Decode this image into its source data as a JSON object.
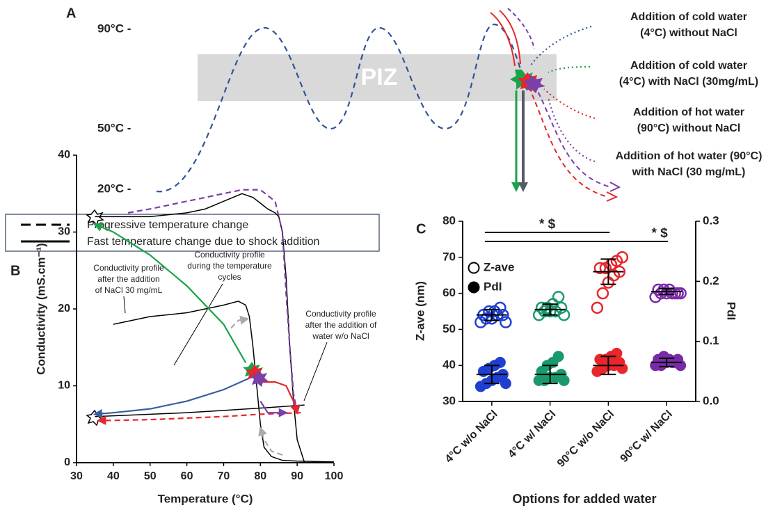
{
  "panel_a": {
    "label": "A",
    "temperatures": [
      "90°C -",
      "50°C -",
      "20°C -"
    ],
    "zone": "PIZ",
    "additions": [
      [
        "Addition of cold water",
        "(4°C) without NaCl"
      ],
      [
        "Addition of cold water",
        "(4°C) with NaCl (30mg/mL)"
      ],
      [
        "Addition of hot water",
        "(90°C) without NaCl"
      ],
      [
        "Addition of hot water (90°C)",
        "with NaCl (30 mg/mL)"
      ]
    ]
  },
  "line_key": [
    "Progressive temperature change",
    "Fast temperature change due to shock addition"
  ],
  "chart_data": [
    {
      "type": "line",
      "label": "B",
      "xlabel": "Temperature (°C)",
      "ylabel": "Conductivity (mS.cm⁻¹)",
      "xlim": [
        30,
        100
      ],
      "xticks": [
        30,
        40,
        50,
        60,
        70,
        80,
        90,
        100
      ],
      "ylim": [
        0,
        40
      ],
      "yticks": [
        0,
        10,
        20,
        30,
        40
      ],
      "annotations": [
        [
          "Conductivity profile",
          "after the addition",
          "of NaCl 30 mg/mL"
        ],
        [
          "Conductivity profile",
          "during the temperature",
          "cycles"
        ],
        [
          "Conductivity profile",
          "after the addition of",
          "water w/o NaCl"
        ]
      ],
      "series": [
        {
          "color": "#000000",
          "dashed": false,
          "arrow": false,
          "x": [
            40,
            50,
            60,
            70,
            74,
            76,
            77,
            78,
            79,
            80,
            81,
            83,
            86,
            90,
            100
          ],
          "values": [
            18,
            19,
            19.5,
            20.5,
            21,
            20.5,
            19,
            15,
            10,
            5,
            2,
            0.8,
            0.3,
            0.2,
            0.1
          ]
        },
        {
          "color": "#000000",
          "dashed": false,
          "arrow": false,
          "x": [
            35,
            40,
            50,
            60,
            65,
            70,
            75,
            78,
            82,
            84,
            85,
            86,
            87,
            88,
            89,
            90,
            92
          ],
          "values": [
            32,
            32,
            32,
            32.5,
            33,
            34,
            35,
            34.5,
            33,
            32.5,
            32,
            30,
            24,
            15,
            8,
            3,
            0
          ]
        },
        {
          "color": "#000000",
          "dashed": false,
          "arrow": false,
          "x": [
            35,
            40,
            50,
            60,
            70,
            80,
            92
          ],
          "values": [
            6,
            6.1,
            6.3,
            6.5,
            6.8,
            7.1,
            7.5
          ]
        },
        {
          "color": "#1aa34a",
          "dashed": false,
          "arrow": true,
          "x": [
            76,
            70,
            60,
            50,
            40,
            35
          ],
          "values": [
            13,
            18,
            23,
            27,
            30,
            31
          ]
        },
        {
          "color": "#3a5da0",
          "dashed": false,
          "arrow": true,
          "x": [
            77,
            70,
            60,
            50,
            40,
            35
          ],
          "values": [
            11,
            9.5,
            8,
            7,
            6.5,
            6.3
          ]
        },
        {
          "color": "#e8262b",
          "dashed": true,
          "arrow": true,
          "x": [
            91,
            80,
            70,
            60,
            50,
            40,
            36
          ],
          "values": [
            6.5,
            6.3,
            6,
            5.8,
            5.6,
            5.5,
            5.5
          ]
        },
        {
          "color": "#7b3fa8",
          "dashed": true,
          "arrow": true,
          "x": [
            44,
            50,
            60,
            70,
            75,
            80,
            84,
            86,
            87,
            88,
            89,
            90
          ],
          "values": [
            32.5,
            33,
            34,
            35,
            35.5,
            35.5,
            34,
            30,
            22,
            15,
            9,
            6.5
          ]
        },
        {
          "color": "#e8262b",
          "dashed": false,
          "arrow": true,
          "x": [
            80,
            84,
            87,
            89,
            90
          ],
          "values": [
            10.5,
            10.5,
            10,
            8,
            6.5
          ]
        },
        {
          "color": "#7b3fa8",
          "dashed": false,
          "arrow": true,
          "x": [
            80,
            82,
            84,
            87
          ],
          "values": [
            8,
            6.5,
            6.5,
            6.5
          ]
        },
        {
          "color": "#aaaaaa",
          "dashed": true,
          "arrow": true,
          "x": [
            72,
            74,
            76.5
          ],
          "values": [
            17.5,
            18.5,
            18.7
          ]
        },
        {
          "color": "#aaaaaa",
          "dashed": true,
          "arrow": true,
          "x": [
            86,
            83,
            81,
            80
          ],
          "values": [
            1,
            1.5,
            3,
            4.5
          ]
        }
      ]
    },
    {
      "type": "dot",
      "label": "C",
      "xlabel": "Options for added water",
      "ylabel": "Z-ave (nm)",
      "y2label": "PdI",
      "categories": [
        "4°C w/o NaCl",
        "4°C w/ NaCl",
        "90°C w/o NaCl",
        "90°C w/ NaCl"
      ],
      "colors": [
        "#1f3fd0",
        "#1a9a6c",
        "#e8262b",
        "#7a2aa6"
      ],
      "ylim": [
        30,
        80
      ],
      "yticks": [
        30,
        40,
        50,
        60,
        70,
        80
      ],
      "y2lim": [
        0,
        0.3
      ],
      "y2ticks": [
        {
          "value": 0,
          "label": "0.0"
        },
        0.1,
        0.2,
        0.3
      ],
      "significance": [
        {
          "from": 0,
          "to": 2,
          "label": "* $"
        },
        {
          "from": 0,
          "to": 3,
          "label": "* $"
        }
      ],
      "series": [
        {
          "name": "Z-ave",
          "marker": "open",
          "values": [
            [
              52,
              53,
              53,
              54,
              54,
              54,
              55,
              55,
              56,
              52
            ],
            [
              54,
              55,
              55,
              55,
              56,
              56,
              56,
              57,
              59,
              54
            ],
            [
              56,
              60,
              63,
              65,
              66,
              67,
              67,
              68,
              69,
              70
            ],
            [
              59,
              60,
              60,
              60,
              60,
              61,
              61,
              61,
              60,
              60
            ]
          ],
          "mean": [
            54,
            55.5,
            66,
            60.5
          ],
          "error": [
            1.5,
            1.5,
            3.5,
            0.8
          ]
        },
        {
          "name": "PdI",
          "marker": "filled",
          "axis": "y2",
          "values": [
            [
              0.025,
              0.03,
              0.035,
              0.04,
              0.045,
              0.05,
              0.055,
              0.06,
              0.065,
              0.03
            ],
            [
              0.035,
              0.035,
              0.04,
              0.04,
              0.045,
              0.05,
              0.06,
              0.065,
              0.075,
              0.035
            ],
            [
              0.05,
              0.055,
              0.06,
              0.06,
              0.065,
              0.07,
              0.07,
              0.075,
              0.08,
              0.055
            ],
            [
              0.06,
              0.06,
              0.065,
              0.065,
              0.07,
              0.07,
              0.075,
              0.07,
              0.065,
              0.06
            ]
          ],
          "mean": [
            0.045,
            0.045,
            0.06,
            0.065
          ],
          "error": [
            0.015,
            0.015,
            0.015,
            0.007
          ]
        }
      ]
    }
  ]
}
